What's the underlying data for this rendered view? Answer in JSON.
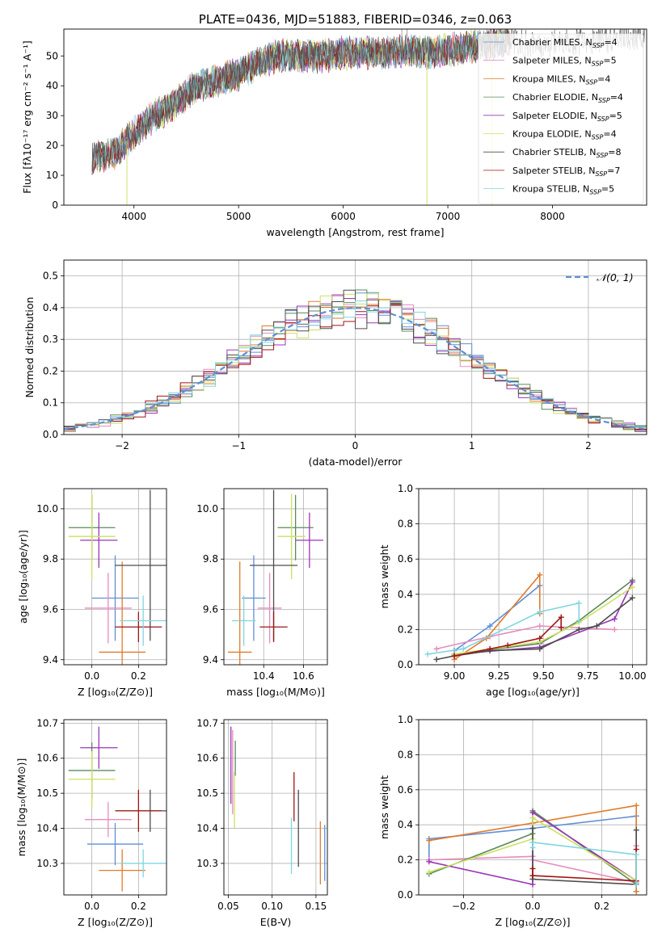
{
  "colors": {
    "chabrier_miles": "#5f8fd6",
    "salpeter_miles": "#e68cbd",
    "kroupa_miles": "#e07b2b",
    "chabrier_elodie": "#5a8a5a",
    "salpeter_elodie": "#9b35b8",
    "kroupa_elodie": "#cce05f",
    "chabrier_stelib": "#4d4d4d",
    "salpeter_stelib": "#a11414",
    "kroupa_stelib": "#7fd6e0",
    "gauss": "#5f8fd6",
    "spectrum": "#5a5a5a"
  },
  "chart_data": [
    {
      "id": "spectrum",
      "type": "line",
      "title": "PLATE=0436, MJD=51883, FIBERID=0346, z=0.063",
      "xlabel": "wavelength [Angstrom, rest frame]",
      "ylabel_html": "Flux [fλ10⁻¹⁷ erg cm⁻² s⁻¹ A⁻¹]",
      "xlim": [
        3330,
        8900
      ],
      "ylim": [
        0,
        59
      ],
      "xticks": [
        4000,
        5000,
        6000,
        7000,
        8000
      ],
      "yticks": [
        0,
        10,
        20,
        30,
        40,
        50
      ],
      "continuum": [
        [
          3600,
          16
        ],
        [
          3800,
          17
        ],
        [
          4000,
          24
        ],
        [
          4200,
          30
        ],
        [
          4400,
          34
        ],
        [
          4600,
          40
        ],
        [
          4800,
          42
        ],
        [
          5000,
          44
        ],
        [
          5200,
          48
        ],
        [
          5400,
          50
        ],
        [
          5600,
          50
        ],
        [
          5800,
          50
        ],
        [
          6000,
          51
        ],
        [
          6200,
          51
        ],
        [
          6400,
          51
        ],
        [
          6600,
          52
        ],
        [
          6800,
          51
        ],
        [
          7000,
          52
        ],
        [
          7200,
          53
        ],
        [
          7400,
          54
        ],
        [
          7600,
          55
        ],
        [
          7800,
          54
        ],
        [
          8000,
          54
        ],
        [
          8200,
          55
        ],
        [
          8400,
          55
        ],
        [
          8600,
          56
        ],
        [
          8800,
          57
        ]
      ],
      "spikes": [
        {
          "x": 3933,
          "y": 0
        },
        {
          "x": 6800,
          "y": 0
        },
        {
          "x": 7420,
          "y": 0
        },
        {
          "x": 6560,
          "y": 59
        },
        {
          "x": 6610,
          "y": 59
        }
      ],
      "legend": [
        {
          "label": "Chabrier MILES, N",
          "sub": "SSP",
          "tail": "=4"
        },
        {
          "label": "Salpeter MILES, N",
          "sub": "SSP",
          "tail": "=5"
        },
        {
          "label": "Kroupa MILES, N",
          "sub": "SSP",
          "tail": "=4"
        },
        {
          "label": "Chabrier ELODIE, N",
          "sub": "SSP",
          "tail": "=4"
        },
        {
          "label": "Salpeter ELODIE, N",
          "sub": "SSP",
          "tail": "=5"
        },
        {
          "label": "Kroupa ELODIE, N",
          "sub": "SSP",
          "tail": "=4"
        },
        {
          "label": "Chabrier STELIB, N",
          "sub": "SSP",
          "tail": "=8"
        },
        {
          "label": "Salpeter STELIB, N",
          "sub": "SSP",
          "tail": "=7"
        },
        {
          "label": "Kroupa STELIB, N",
          "sub": "SSP",
          "tail": "=5"
        }
      ],
      "legend_position": "top-right"
    },
    {
      "id": "residuals",
      "type": "line",
      "xlabel": "(data-model)/error",
      "ylabel": "Normed distribution",
      "xlim": [
        -2.5,
        2.5
      ],
      "ylim": [
        0,
        0.55
      ],
      "xticks": [
        -2,
        -1,
        0,
        1,
        2
      ],
      "yticks": [
        0.0,
        0.1,
        0.2,
        0.3,
        0.4,
        0.5
      ],
      "grid": true,
      "gauss_legend": "𝒩(0, 1)",
      "legend_position": "top-right",
      "bin_width": 0.1
    },
    {
      "id": "z-age",
      "type": "scatter",
      "xlabel": "Z [log₁₀(Z/Z⊙)]",
      "ylabel": "age  [log₁₀(age/yr)]",
      "xlim": [
        -0.12,
        0.32
      ],
      "ylim": [
        9.38,
        10.08
      ],
      "xticks": [
        0.0,
        0.2
      ],
      "yticks": [
        9.4,
        9.6,
        9.8,
        10.0
      ],
      "grid": true,
      "points": [
        {
          "series": "chabrier_miles",
          "x": 0.1,
          "y": 9.645,
          "xerr": 0.1,
          "yerr": 0.17
        },
        {
          "series": "salpeter_miles",
          "x": 0.07,
          "y": 9.605,
          "xerr": 0.1,
          "yerr": 0.14
        },
        {
          "series": "kroupa_miles",
          "x": 0.13,
          "y": 9.43,
          "xerr": 0.1,
          "yerr": 0.36
        },
        {
          "series": "chabrier_elodie",
          "x": 0.0,
          "y": 9.925,
          "xerr": 0.1,
          "yerr": 0.13
        },
        {
          "series": "salpeter_elodie",
          "x": 0.03,
          "y": 9.875,
          "xerr": 0.08,
          "yerr": 0.11
        },
        {
          "series": "kroupa_elodie",
          "x": 0.0,
          "y": 9.89,
          "xerr": 0.1,
          "yerr": 0.17
        },
        {
          "series": "chabrier_stelib",
          "x": 0.25,
          "y": 9.775,
          "xerr": 0.15,
          "yerr": 0.3
        },
        {
          "series": "salpeter_stelib",
          "x": 0.2,
          "y": 9.53,
          "xerr": 0.1,
          "yerr": 0.06
        },
        {
          "series": "kroupa_stelib",
          "x": 0.22,
          "y": 9.555,
          "xerr": 0.1,
          "yerr": 0.1
        }
      ]
    },
    {
      "id": "mass-age",
      "type": "scatter",
      "xlabel": "mass [log₁₀(M/M⊙)]",
      "xlim": [
        10.2,
        10.72
      ],
      "ylim": [
        9.38,
        10.08
      ],
      "xticks": [
        10.4,
        10.6
      ],
      "yticks": [
        9.4,
        9.6,
        9.8,
        10.0
      ],
      "grid": true,
      "points": [
        {
          "series": "chabrier_miles",
          "x": 10.35,
          "y": 9.645,
          "xerr": 0.06,
          "yerr": 0.17
        },
        {
          "series": "salpeter_miles",
          "x": 10.43,
          "y": 9.605,
          "xerr": 0.06,
          "yerr": 0.14
        },
        {
          "series": "kroupa_miles",
          "x": 10.28,
          "y": 9.43,
          "xerr": 0.06,
          "yerr": 0.36
        },
        {
          "series": "chabrier_elodie",
          "x": 10.56,
          "y": 9.925,
          "xerr": 0.09,
          "yerr": 0.13
        },
        {
          "series": "salpeter_elodie",
          "x": 10.63,
          "y": 9.875,
          "xerr": 0.07,
          "yerr": 0.11
        },
        {
          "series": "kroupa_elodie",
          "x": 10.54,
          "y": 9.89,
          "xerr": 0.07,
          "yerr": 0.17
        },
        {
          "series": "chabrier_stelib",
          "x": 10.45,
          "y": 9.775,
          "xerr": 0.12,
          "yerr": 0.3
        },
        {
          "series": "salpeter_stelib",
          "x": 10.45,
          "y": 9.53,
          "xerr": 0.07,
          "yerr": 0.06
        },
        {
          "series": "kroupa_stelib",
          "x": 10.3,
          "y": 9.555,
          "xerr": 0.06,
          "yerr": 0.1
        }
      ]
    },
    {
      "id": "age-weight",
      "type": "line",
      "xlabel": "age  [log₁₀(age/yr)]",
      "ylabel": "mass weight",
      "xlim": [
        8.8,
        10.08
      ],
      "ylim": [
        0,
        1.0
      ],
      "xticks": [
        9.0,
        9.25,
        9.5,
        9.75,
        10.0
      ],
      "xtick_labels": [
        "9.00",
        "9.25",
        "9.50",
        "9.75",
        "10.00"
      ],
      "yticks": [
        0.0,
        0.2,
        0.4,
        0.6,
        0.8,
        1.0
      ],
      "grid": true,
      "series": [
        {
          "name": "chabrier_miles",
          "x": [
            9.0,
            9.2,
            9.48
          ],
          "y": [
            0.08,
            0.22,
            0.45
          ]
        },
        {
          "name": "salpeter_miles",
          "x": [
            8.9,
            9.2,
            9.48,
            9.9
          ],
          "y": [
            0.09,
            0.16,
            0.22,
            0.2
          ]
        },
        {
          "name": "kroupa_miles",
          "x": [
            9.0,
            9.18,
            9.48,
            9.48
          ],
          "y": [
            0.03,
            0.15,
            0.51,
            0.29
          ]
        },
        {
          "name": "chabrier_elodie",
          "x": [
            9.0,
            9.48,
            9.7,
            10.0
          ],
          "y": [
            0.06,
            0.12,
            0.25,
            0.48
          ]
        },
        {
          "name": "salpeter_elodie",
          "x": [
            9.0,
            9.48,
            9.9,
            10.0
          ],
          "y": [
            0.06,
            0.1,
            0.26,
            0.47
          ]
        },
        {
          "name": "kroupa_elodie",
          "x": [
            9.0,
            9.48,
            9.7,
            10.0
          ],
          "y": [
            0.06,
            0.13,
            0.24,
            0.44
          ]
        },
        {
          "name": "chabrier_stelib",
          "x": [
            8.9,
            9.0,
            9.2,
            9.48,
            9.7,
            9.8,
            10.0
          ],
          "y": [
            0.03,
            0.05,
            0.08,
            0.09,
            0.2,
            0.22,
            0.38
          ]
        },
        {
          "name": "salpeter_stelib",
          "x": [
            9.0,
            9.2,
            9.3,
            9.48,
            9.6,
            9.6
          ],
          "y": [
            0.05,
            0.09,
            0.11,
            0.15,
            0.27,
            0.21
          ]
        },
        {
          "name": "kroupa_stelib",
          "x": [
            8.85,
            9.05,
            9.48,
            9.7,
            9.7
          ],
          "y": [
            0.06,
            0.09,
            0.3,
            0.35,
            0.25
          ]
        }
      ]
    },
    {
      "id": "z-mass",
      "type": "scatter",
      "xlabel": "Z [log₁₀(Z/Z⊙)]",
      "ylabel": "mass [log₁₀(M/M⊙)]",
      "xlim": [
        -0.12,
        0.32
      ],
      "ylim": [
        10.21,
        10.71
      ],
      "xticks": [
        0.0,
        0.2
      ],
      "yticks": [
        10.3,
        10.4,
        10.5,
        10.6,
        10.7
      ],
      "grid": true,
      "points": [
        {
          "series": "chabrier_miles",
          "x": 0.1,
          "y": 10.355,
          "xerr": 0.12,
          "yerr": 0.06
        },
        {
          "series": "salpeter_miles",
          "x": 0.07,
          "y": 10.425,
          "xerr": 0.1,
          "yerr": 0.05
        },
        {
          "series": "kroupa_miles",
          "x": 0.13,
          "y": 10.28,
          "xerr": 0.1,
          "yerr": 0.06
        },
        {
          "series": "chabrier_elodie",
          "x": 0.0,
          "y": 10.565,
          "xerr": 0.1,
          "yerr": 0.08
        },
        {
          "series": "salpeter_elodie",
          "x": 0.03,
          "y": 10.63,
          "xerr": 0.08,
          "yerr": 0.06
        },
        {
          "series": "kroupa_elodie",
          "x": 0.0,
          "y": 10.54,
          "xerr": 0.1,
          "yerr": 0.08
        },
        {
          "series": "chabrier_stelib",
          "x": 0.25,
          "y": 10.45,
          "xerr": 0.15,
          "yerr": 0.06
        },
        {
          "series": "salpeter_stelib",
          "x": 0.2,
          "y": 10.45,
          "xerr": 0.1,
          "yerr": 0.06
        },
        {
          "series": "kroupa_stelib",
          "x": 0.22,
          "y": 10.3,
          "xerr": 0.1,
          "yerr": 0.04
        }
      ]
    },
    {
      "id": "ebv-mass",
      "type": "scatter",
      "xlabel": "E(B-V)",
      "xlim": [
        0.045,
        0.163
      ],
      "ylim": [
        10.21,
        10.71
      ],
      "xticks": [
        0.05,
        0.1,
        0.15
      ],
      "yticks": [
        10.3,
        10.4,
        10.5,
        10.6,
        10.7
      ],
      "grid": true,
      "points": [
        {
          "series": "chabrier_miles",
          "x": 0.16,
          "y": 10.33,
          "xerr": 0,
          "yerr": 0.08
        },
        {
          "series": "salpeter_miles",
          "x": 0.055,
          "y": 10.56,
          "xerr": 0,
          "yerr": 0.12
        },
        {
          "series": "kroupa_miles",
          "x": 0.155,
          "y": 10.33,
          "xerr": 0,
          "yerr": 0.09
        },
        {
          "series": "chabrier_elodie",
          "x": 0.058,
          "y": 10.6,
          "xerr": 0,
          "yerr": 0.05
        },
        {
          "series": "salpeter_elodie",
          "x": 0.053,
          "y": 10.58,
          "xerr": 0,
          "yerr": 0.11
        },
        {
          "series": "kroupa_elodie",
          "x": 0.057,
          "y": 10.48,
          "xerr": 0,
          "yerr": 0.08
        },
        {
          "series": "chabrier_stelib",
          "x": 0.13,
          "y": 10.4,
          "xerr": 0,
          "yerr": 0.11
        },
        {
          "series": "salpeter_stelib",
          "x": 0.125,
          "y": 10.49,
          "xerr": 0,
          "yerr": 0.07
        },
        {
          "series": "kroupa_stelib",
          "x": 0.122,
          "y": 10.35,
          "xerr": 0,
          "yerr": 0.08
        }
      ]
    },
    {
      "id": "z-weight",
      "type": "line",
      "xlabel": "Z [log₁₀(Z/Z⊙)]",
      "ylabel": "mass weight",
      "xlim": [
        -0.33,
        0.33
      ],
      "ylim": [
        0,
        1.0
      ],
      "xticks": [
        -0.2,
        0.0,
        0.2
      ],
      "yticks": [
        0.0,
        0.2,
        0.4,
        0.6,
        0.8,
        1.0
      ],
      "grid": true,
      "series": [
        {
          "name": "chabrier_miles",
          "x": [
            -0.3,
            -0.3,
            0.0,
            0.3,
            0.3
          ],
          "y": [
            0.2,
            0.32,
            0.38,
            0.45,
            0.02
          ]
        },
        {
          "name": "salpeter_miles",
          "x": [
            -0.3,
            0.0,
            0.0,
            0.3,
            0.3
          ],
          "y": [
            0.2,
            0.22,
            0.2,
            0.07,
            0.28
          ]
        },
        {
          "name": "kroupa_miles",
          "x": [
            -0.3,
            0.0,
            0.3,
            0.3
          ],
          "y": [
            0.31,
            0.41,
            0.51,
            0.02
          ]
        },
        {
          "name": "chabrier_elodie",
          "x": [
            -0.3,
            0.0,
            0.0,
            0.3
          ],
          "y": [
            0.12,
            0.35,
            0.48,
            0.06
          ]
        },
        {
          "name": "salpeter_elodie",
          "x": [
            -0.3,
            0.0,
            0.0,
            0.3
          ],
          "y": [
            0.19,
            0.06,
            0.47,
            0.08
          ]
        },
        {
          "name": "kroupa_elodie",
          "x": [
            -0.3,
            0.0,
            0.0,
            0.3
          ],
          "y": [
            0.13,
            0.32,
            0.44,
            0.08
          ]
        },
        {
          "name": "chabrier_stelib",
          "x": [
            0.0,
            0.0,
            0.3,
            0.3
          ],
          "y": [
            0.38,
            0.09,
            0.06,
            0.37
          ]
        },
        {
          "name": "salpeter_stelib",
          "x": [
            0.0,
            0.0,
            0.3,
            0.3
          ],
          "y": [
            0.15,
            0.11,
            0.08,
            0.26
          ]
        },
        {
          "name": "kroupa_stelib",
          "x": [
            0.0,
            0.0,
            0.3,
            0.3
          ],
          "y": [
            0.27,
            0.3,
            0.23,
            0.06
          ]
        }
      ]
    }
  ]
}
